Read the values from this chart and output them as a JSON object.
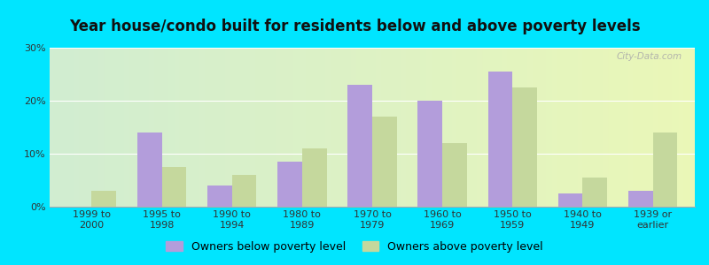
{
  "title": "Year house/condo built for residents below and above poverty levels",
  "categories": [
    "1999 to\n2000",
    "1995 to\n1998",
    "1990 to\n1994",
    "1980 to\n1989",
    "1970 to\n1979",
    "1960 to\n1969",
    "1950 to\n1959",
    "1940 to\n1949",
    "1939 or\nearlier"
  ],
  "below_poverty": [
    0.0,
    14.0,
    4.0,
    8.5,
    23.0,
    20.0,
    25.5,
    2.5,
    3.0
  ],
  "above_poverty": [
    3.0,
    7.5,
    6.0,
    11.0,
    17.0,
    12.0,
    22.5,
    5.5,
    14.0
  ],
  "below_color": "#b39ddb",
  "above_color": "#c5d89d",
  "outer_bg": "#00e5ff",
  "ylim": [
    0,
    30
  ],
  "yticks": [
    0,
    10,
    20,
    30
  ],
  "ytick_labels": [
    "0%",
    "10%",
    "20%",
    "30%"
  ],
  "bar_width": 0.35,
  "title_fontsize": 12,
  "tick_fontsize": 8,
  "legend_fontsize": 9,
  "legend_below_label": "Owners below poverty level",
  "legend_above_label": "Owners above poverty level",
  "watermark": "City-Data.com",
  "grid_color": "#ffffff",
  "plot_bg_left": "#d4edda",
  "plot_bg_right": "#f0f8e8"
}
